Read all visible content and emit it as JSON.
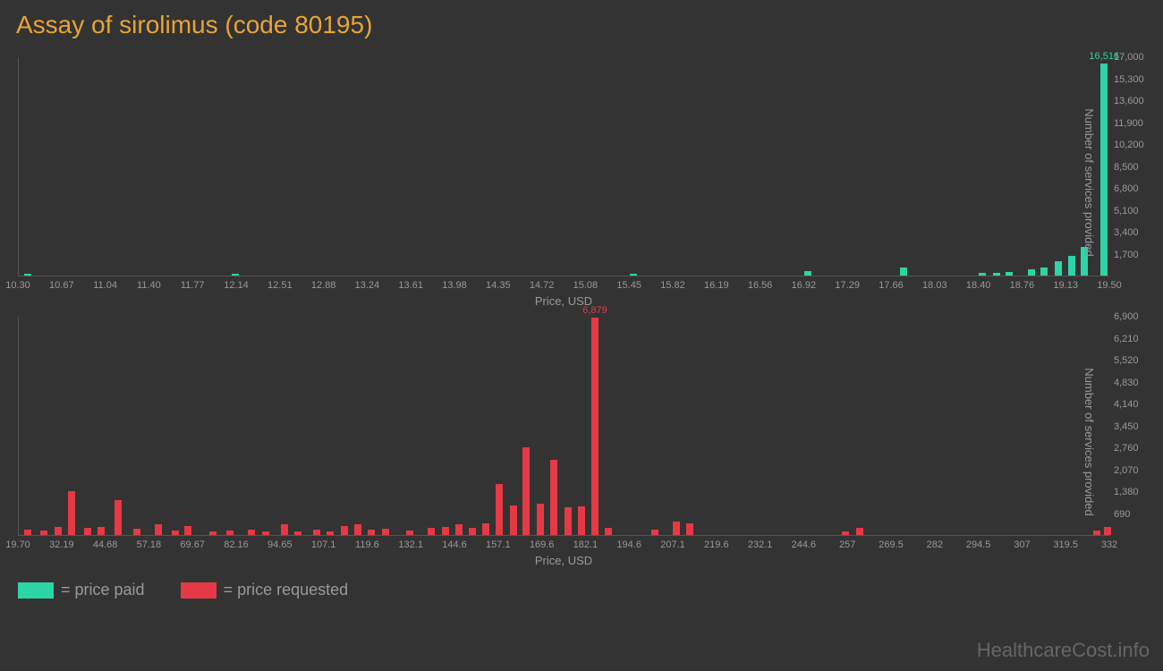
{
  "title": "Assay of sirolimus (code 80195)",
  "watermark": "HealthcareCost.info",
  "legend": {
    "paid": {
      "label": "= price paid",
      "color": "#2dd4a5"
    },
    "requested": {
      "label": "= price requested",
      "color": "#e63946"
    }
  },
  "chart_paid": {
    "type": "bar",
    "bar_color": "#2dd4a5",
    "background": "#333333",
    "xlabel": "Price, USD",
    "ylabel": "Number of services provided",
    "x_ticks": [
      "10.30",
      "10.67",
      "11.04",
      "11.40",
      "11.77",
      "12.14",
      "12.51",
      "12.88",
      "13.24",
      "13.61",
      "13.98",
      "14.35",
      "14.72",
      "15.08",
      "15.45",
      "15.82",
      "16.19",
      "16.56",
      "16.92",
      "17.29",
      "17.66",
      "18.03",
      "18.40",
      "18.76",
      "19.13",
      "19.50"
    ],
    "y_ticks": [
      "1,700",
      "3,400",
      "5,100",
      "6,800",
      "8,500",
      "10,200",
      "11,900",
      "13,600",
      "15,300",
      "17,000"
    ],
    "y_max": 17000,
    "bars": [
      {
        "x_pct": 0.5,
        "value": 120
      },
      {
        "x_pct": 19.5,
        "value": 110
      },
      {
        "x_pct": 56.0,
        "value": 130
      },
      {
        "x_pct": 72.0,
        "value": 380
      },
      {
        "x_pct": 80.8,
        "value": 620
      },
      {
        "x_pct": 88.0,
        "value": 220
      },
      {
        "x_pct": 89.3,
        "value": 240
      },
      {
        "x_pct": 90.5,
        "value": 260
      },
      {
        "x_pct": 92.5,
        "value": 500
      },
      {
        "x_pct": 93.7,
        "value": 650
      },
      {
        "x_pct": 95.0,
        "value": 1100
      },
      {
        "x_pct": 96.2,
        "value": 1500
      },
      {
        "x_pct": 97.4,
        "value": 2200
      },
      {
        "x_pct": 99.2,
        "value": 16516,
        "label": "16,516"
      }
    ]
  },
  "chart_requested": {
    "type": "bar",
    "bar_color": "#e63946",
    "background": "#333333",
    "xlabel": "Price, USD",
    "ylabel": "Number of services provided",
    "x_ticks": [
      "19.70",
      "32.19",
      "44.68",
      "57.18",
      "69.67",
      "82.16",
      "94.65",
      "107.1",
      "119.6",
      "132.1",
      "144.6",
      "157.1",
      "169.6",
      "182.1",
      "194.6",
      "207.1",
      "219.6",
      "232.1",
      "244.6",
      "257",
      "269.5",
      "282",
      "294.5",
      "307",
      "319.5",
      "332"
    ],
    "y_ticks": [
      "690",
      "1,380",
      "2,070",
      "2,760",
      "3,450",
      "4,140",
      "4,830",
      "5,520",
      "6,210",
      "6,900"
    ],
    "y_max": 6900,
    "bars": [
      {
        "x_pct": 0.5,
        "value": 180
      },
      {
        "x_pct": 2.0,
        "value": 150
      },
      {
        "x_pct": 3.3,
        "value": 260
      },
      {
        "x_pct": 4.5,
        "value": 1380
      },
      {
        "x_pct": 6.0,
        "value": 220
      },
      {
        "x_pct": 7.2,
        "value": 260
      },
      {
        "x_pct": 8.8,
        "value": 1100
      },
      {
        "x_pct": 10.5,
        "value": 200
      },
      {
        "x_pct": 12.5,
        "value": 350
      },
      {
        "x_pct": 14.0,
        "value": 150
      },
      {
        "x_pct": 15.2,
        "value": 280
      },
      {
        "x_pct": 17.5,
        "value": 120
      },
      {
        "x_pct": 19.0,
        "value": 140
      },
      {
        "x_pct": 21.0,
        "value": 180
      },
      {
        "x_pct": 22.3,
        "value": 110
      },
      {
        "x_pct": 24.0,
        "value": 350
      },
      {
        "x_pct": 25.3,
        "value": 120
      },
      {
        "x_pct": 27.0,
        "value": 160
      },
      {
        "x_pct": 28.2,
        "value": 110
      },
      {
        "x_pct": 29.5,
        "value": 280
      },
      {
        "x_pct": 30.8,
        "value": 340
      },
      {
        "x_pct": 32.0,
        "value": 180
      },
      {
        "x_pct": 33.3,
        "value": 200
      },
      {
        "x_pct": 35.5,
        "value": 140
      },
      {
        "x_pct": 37.5,
        "value": 220
      },
      {
        "x_pct": 38.8,
        "value": 260
      },
      {
        "x_pct": 40.0,
        "value": 340
      },
      {
        "x_pct": 41.3,
        "value": 240
      },
      {
        "x_pct": 42.5,
        "value": 380
      },
      {
        "x_pct": 43.7,
        "value": 1620
      },
      {
        "x_pct": 45.0,
        "value": 940
      },
      {
        "x_pct": 46.2,
        "value": 2780
      },
      {
        "x_pct": 47.5,
        "value": 980
      },
      {
        "x_pct": 48.7,
        "value": 2380
      },
      {
        "x_pct": 50.0,
        "value": 880
      },
      {
        "x_pct": 51.3,
        "value": 900
      },
      {
        "x_pct": 52.5,
        "value": 6879,
        "label": "6,879"
      },
      {
        "x_pct": 53.7,
        "value": 220
      },
      {
        "x_pct": 58.0,
        "value": 180
      },
      {
        "x_pct": 60.0,
        "value": 420
      },
      {
        "x_pct": 61.2,
        "value": 380
      },
      {
        "x_pct": 75.5,
        "value": 120
      },
      {
        "x_pct": 76.8,
        "value": 240
      },
      {
        "x_pct": 98.5,
        "value": 140
      },
      {
        "x_pct": 99.5,
        "value": 260
      }
    ]
  }
}
